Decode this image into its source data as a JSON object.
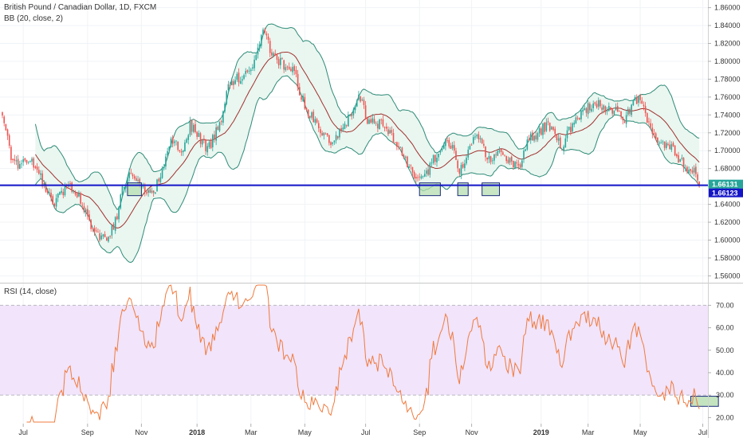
{
  "header": {
    "symbol": "British Pound / Canadian Dollar, 1D, FXCM",
    "indicator": "BB (20, close, 2)"
  },
  "rsi_panel": {
    "label": "RSI (14, close)"
  },
  "colors": {
    "up": "#26a69a",
    "down": "#ef5350",
    "bb_band": "#2e8b77",
    "bb_fill": "#e8f5ee",
    "bb_basis": "#a0302c",
    "support": "#1515c8",
    "rsi_line": "#f07b3f",
    "rsi_band": "#f1e4fb",
    "highlight": "#b5ddb0"
  },
  "chart_data": [
    {
      "type": "candlestick",
      "title": "British Pound / Canadian Dollar, 1D, FXCM",
      "indicator": "BB (20, close, 2)",
      "x_ticks": [
        "Jul",
        "Sep",
        "Nov",
        "2018",
        "Mar",
        "May",
        "Jul",
        "Sep",
        "Nov",
        "2019",
        "Mar",
        "May",
        "Jul"
      ],
      "y_ticks": [
        "1.56000",
        "1.58000",
        "1.60000",
        "1.62000",
        "1.64000",
        "1.66000",
        "1.68000",
        "1.70000",
        "1.72000",
        "1.74000",
        "1.76000",
        "1.78000",
        "1.80000",
        "1.82000",
        "1.84000",
        "1.86000"
      ],
      "ylim": [
        1.555,
        1.865
      ],
      "close_path": [
        [
          0,
          1.745
        ],
        [
          5,
          1.69
        ],
        [
          10,
          1.685
        ],
        [
          16,
          1.69
        ],
        [
          20,
          1.675
        ],
        [
          25,
          1.66
        ],
        [
          30,
          1.64
        ],
        [
          38,
          1.665
        ],
        [
          44,
          1.65
        ],
        [
          50,
          1.62
        ],
        [
          56,
          1.605
        ],
        [
          60,
          1.6
        ],
        [
          65,
          1.62
        ],
        [
          70,
          1.665
        ],
        [
          75,
          1.675
        ],
        [
          80,
          1.66
        ],
        [
          85,
          1.65
        ],
        [
          90,
          1.665
        ],
        [
          97,
          1.71
        ],
        [
          104,
          1.7
        ],
        [
          108,
          1.73
        ],
        [
          113,
          1.715
        ],
        [
          118,
          1.7
        ],
        [
          125,
          1.73
        ],
        [
          130,
          1.77
        ],
        [
          135,
          1.78
        ],
        [
          140,
          1.785
        ],
        [
          145,
          1.8
        ],
        [
          150,
          1.835
        ],
        [
          155,
          1.81
        ],
        [
          158,
          1.8
        ],
        [
          163,
          1.795
        ],
        [
          168,
          1.79
        ],
        [
          172,
          1.76
        ],
        [
          177,
          1.74
        ],
        [
          182,
          1.725
        ],
        [
          190,
          1.71
        ],
        [
          197,
          1.73
        ],
        [
          203,
          1.75
        ],
        [
          206,
          1.76
        ],
        [
          210,
          1.735
        ],
        [
          214,
          1.73
        ],
        [
          218,
          1.73
        ],
        [
          224,
          1.715
        ],
        [
          229,
          1.7
        ],
        [
          234,
          1.68
        ],
        [
          238,
          1.67
        ],
        [
          244,
          1.675
        ],
        [
          248,
          1.69
        ],
        [
          252,
          1.705
        ],
        [
          256,
          1.71
        ],
        [
          260,
          1.7
        ],
        [
          263,
          1.675
        ],
        [
          268,
          1.7
        ],
        [
          272,
          1.72
        ],
        [
          277,
          1.7
        ],
        [
          282,
          1.69
        ],
        [
          287,
          1.7
        ],
        [
          292,
          1.69
        ],
        [
          297,
          1.68
        ],
        [
          302,
          1.71
        ],
        [
          308,
          1.72
        ],
        [
          314,
          1.73
        ],
        [
          318,
          1.715
        ],
        [
          322,
          1.705
        ],
        [
          328,
          1.73
        ],
        [
          333,
          1.74
        ],
        [
          338,
          1.75
        ],
        [
          343,
          1.755
        ],
        [
          348,
          1.745
        ],
        [
          353,
          1.745
        ],
        [
          358,
          1.735
        ],
        [
          362,
          1.75
        ],
        [
          366,
          1.76
        ],
        [
          370,
          1.74
        ],
        [
          374,
          1.72
        ],
        [
          378,
          1.71
        ],
        [
          382,
          1.705
        ],
        [
          386,
          1.7
        ],
        [
          390,
          1.69
        ],
        [
          394,
          1.68
        ],
        [
          398,
          1.675
        ],
        [
          401,
          1.662
        ]
      ],
      "ohlc_note": "close path reconstructed; candles generated from it",
      "bollinger": {
        "length": 20,
        "source": "close",
        "mult": 2
      },
      "support_level": 1.66131,
      "price_labels": [
        "1.66131",
        "1.66123"
      ],
      "support_zones": [
        [
          72,
          80
        ],
        [
          240,
          252
        ],
        [
          262,
          268
        ],
        [
          276,
          286
        ]
      ]
    },
    {
      "type": "line",
      "title": "RSI (14, close)",
      "y_ticks": [
        "20.00",
        "30.00",
        "40.00",
        "50.00",
        "60.00",
        "70.00"
      ],
      "ylim": [
        18,
        79
      ],
      "band": [
        30,
        70
      ],
      "oversold_zone": [
        397,
        412
      ]
    }
  ]
}
